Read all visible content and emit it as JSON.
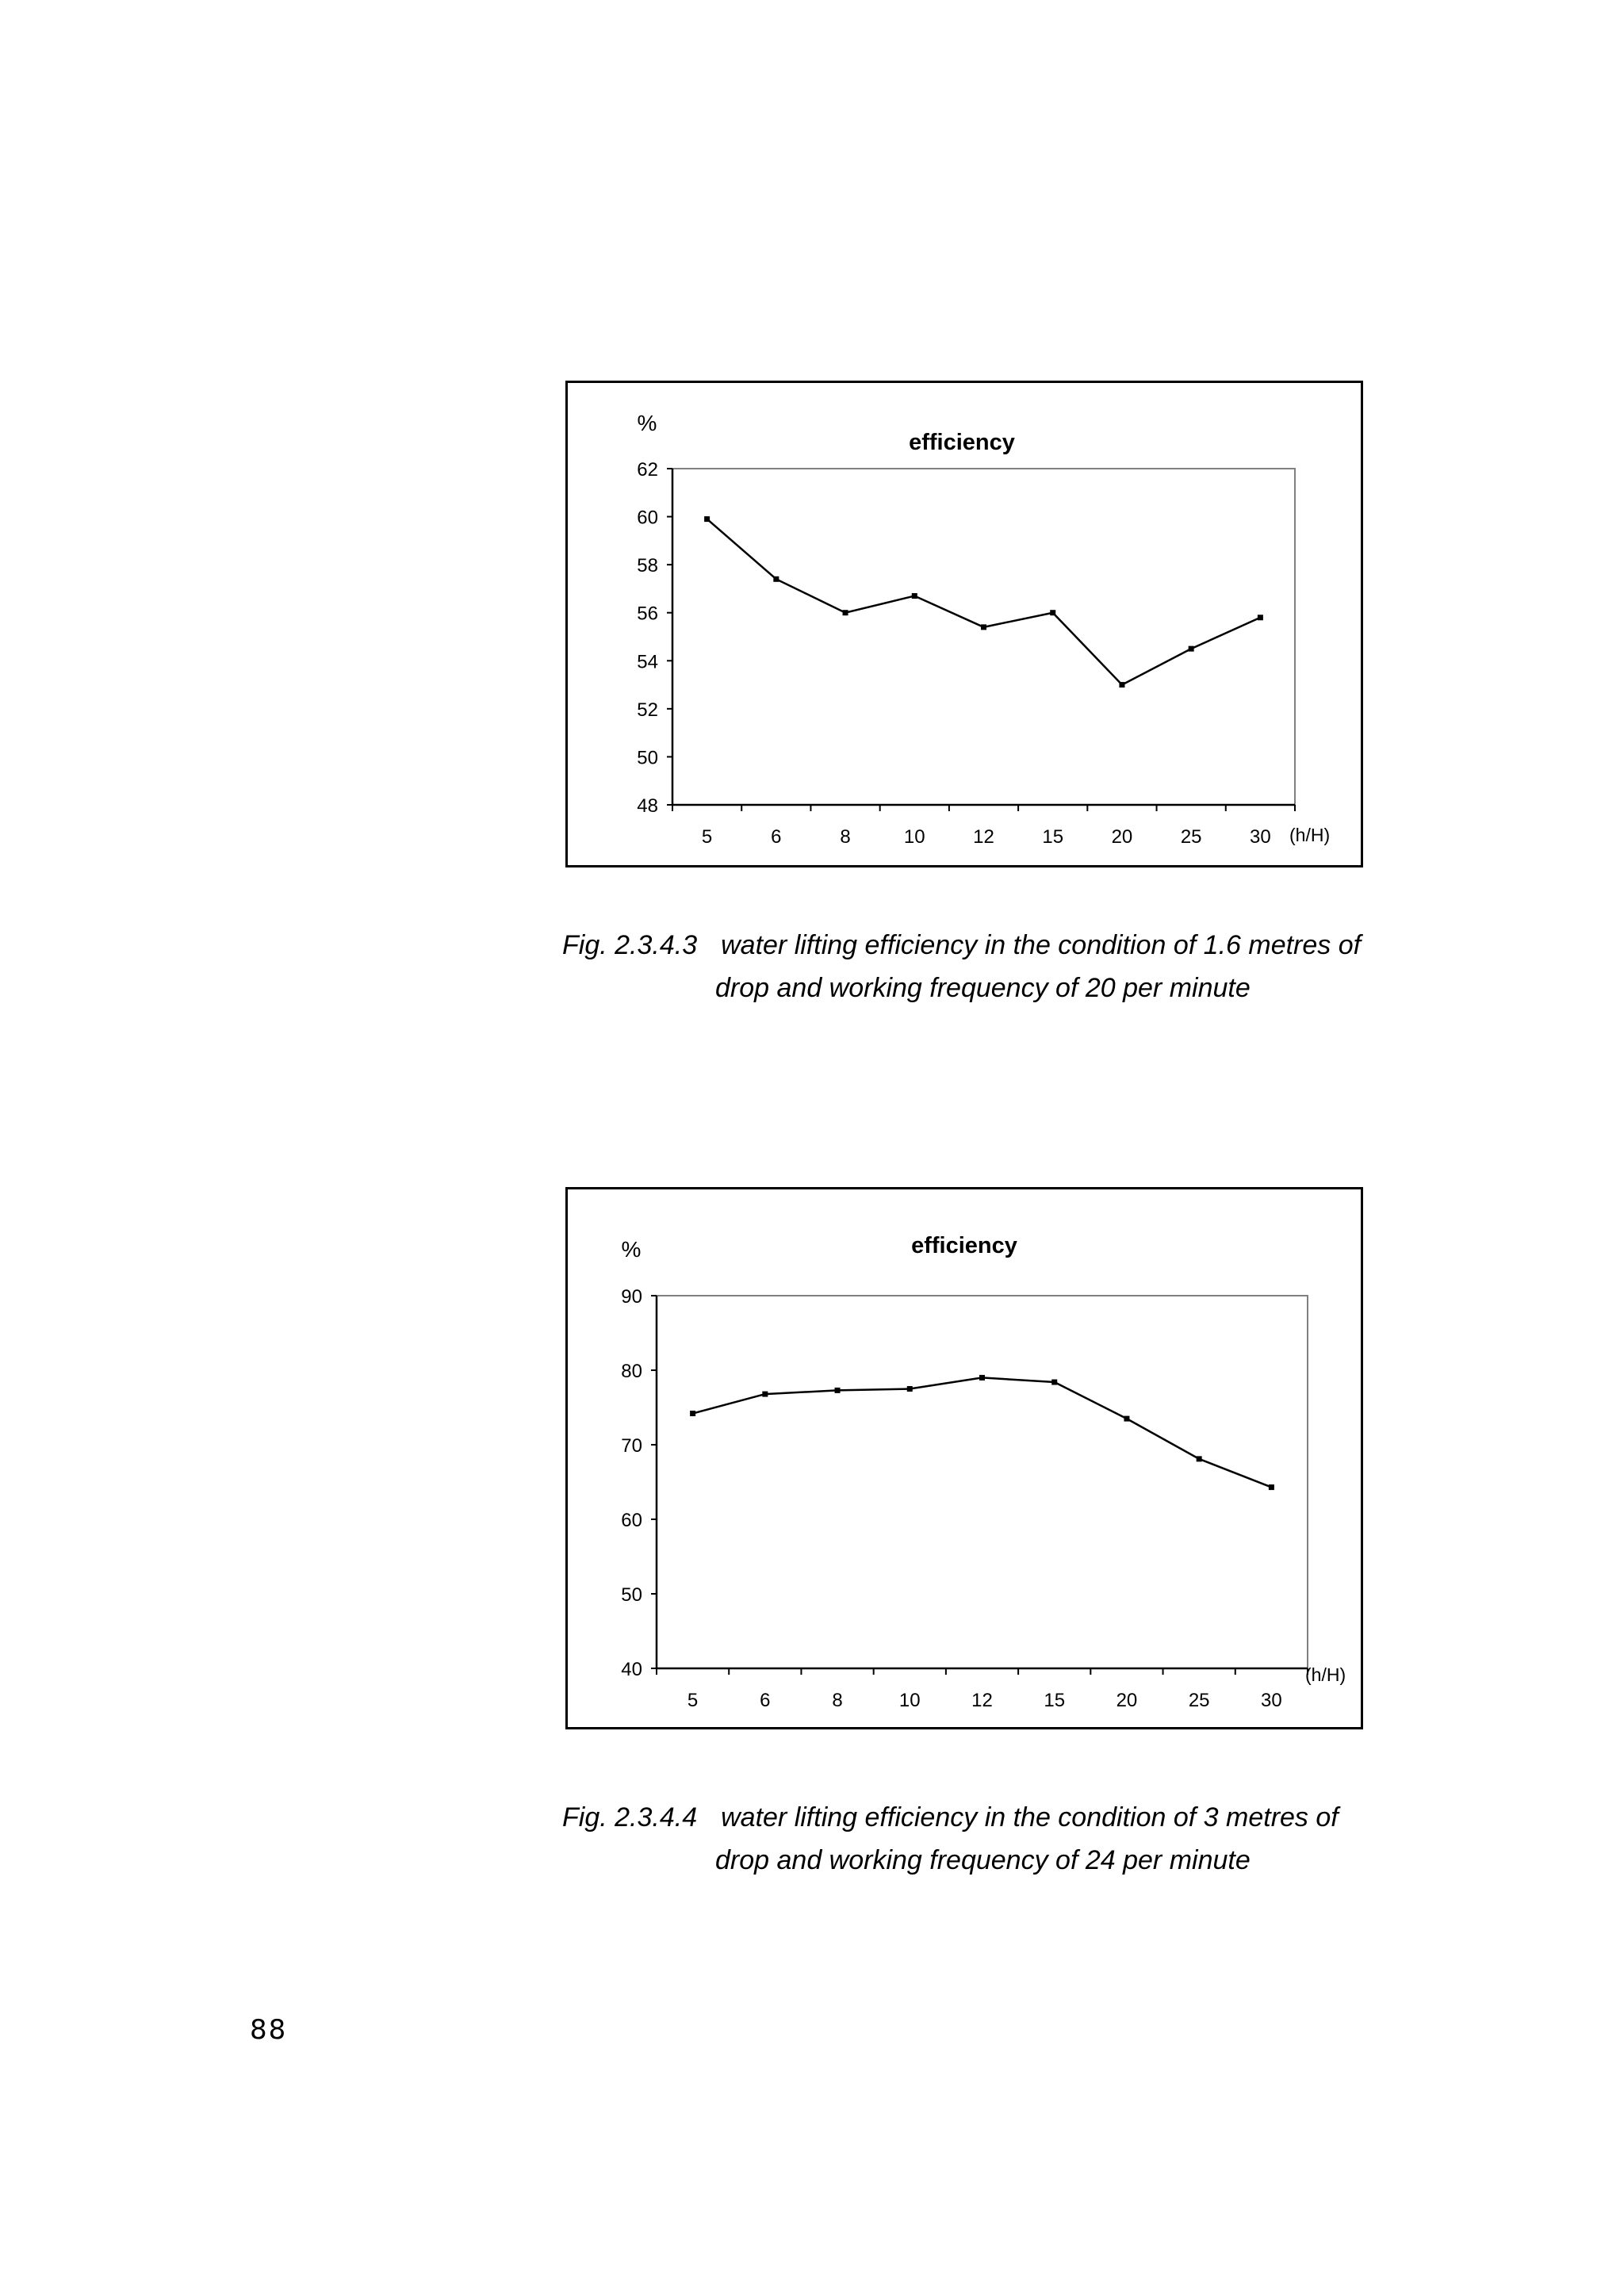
{
  "chart_data": [
    {
      "type": "line",
      "title": "efficiency",
      "ylabel": "%",
      "xlabel": "(h/H)",
      "categories": [
        "5",
        "6",
        "8",
        "10",
        "12",
        "15",
        "20",
        "25",
        "30"
      ],
      "yticks": [
        48,
        50,
        52,
        54,
        56,
        58,
        60,
        62
      ],
      "ylim": [
        48,
        62
      ],
      "series": [
        {
          "values": [
            59.9,
            57.4,
            56.0,
            56.7,
            55.4,
            56.0,
            53.0,
            54.5,
            55.8
          ]
        }
      ],
      "grid": false,
      "color": "#000000"
    },
    {
      "type": "line",
      "title": "efficiency",
      "ylabel": "%",
      "xlabel": "(h/H)",
      "categories": [
        "5",
        "6",
        "8",
        "10",
        "12",
        "15",
        "20",
        "25",
        "30"
      ],
      "yticks": [
        40,
        50,
        60,
        70,
        80,
        90
      ],
      "ylim": [
        40,
        90
      ],
      "series": [
        {
          "values": [
            74.2,
            76.8,
            77.3,
            77.5,
            79.0,
            78.4,
            73.5,
            68.1,
            64.3
          ]
        }
      ],
      "grid": false,
      "color": "#000000"
    }
  ],
  "captions": [
    {
      "number": "Fig. 2.3.4.3",
      "line1": "water lifting efficiency in the condition of 1.6 metres of",
      "line2": "drop and working frequency of 20 per minute"
    },
    {
      "number": "Fig. 2.3.4.4",
      "line1": "water lifting efficiency in the condition of 3 metres of",
      "line2": "drop and working frequency of 24 per minute"
    }
  ],
  "page_number": "88"
}
